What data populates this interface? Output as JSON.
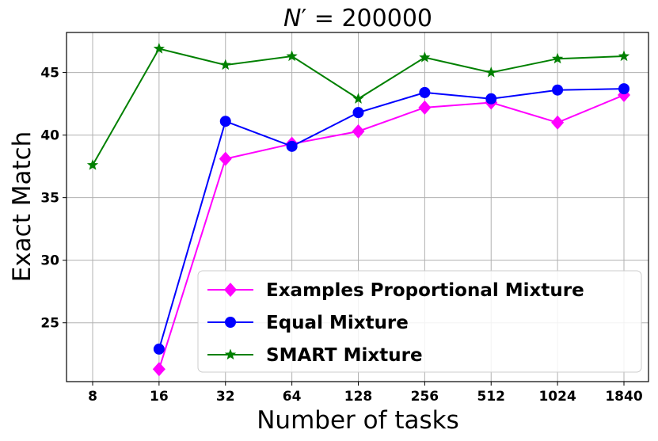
{
  "chart_data": {
    "type": "line",
    "title": "N′ = 200000",
    "title_math": {
      "var": "N",
      "prime": "′",
      "eq": " = 200000"
    },
    "xlabel": "Number of tasks",
    "ylabel": "Exact Match",
    "categories": [
      "8",
      "16",
      "32",
      "64",
      "128",
      "256",
      "512",
      "1024",
      "1840"
    ],
    "y_ticks": [
      25,
      30,
      35,
      40,
      45
    ],
    "ylim": [
      20.3,
      48.2
    ],
    "grid": true,
    "legend_position": "lower-right",
    "series": [
      {
        "name": "Examples Proportional Mixture",
        "color": "#ff00ff",
        "marker": "diamond",
        "values": [
          null,
          21.3,
          38.1,
          39.3,
          40.3,
          42.2,
          42.6,
          41.0,
          43.2
        ]
      },
      {
        "name": "Equal Mixture",
        "color": "#0000ff",
        "marker": "circle",
        "values": [
          null,
          22.9,
          41.1,
          39.1,
          41.8,
          43.4,
          42.9,
          43.6,
          43.7
        ]
      },
      {
        "name": "SMART Mixture",
        "color": "#008000",
        "marker": "star",
        "values": [
          37.6,
          46.9,
          45.6,
          46.3,
          42.9,
          46.2,
          45.0,
          46.1,
          46.3
        ]
      }
    ]
  }
}
